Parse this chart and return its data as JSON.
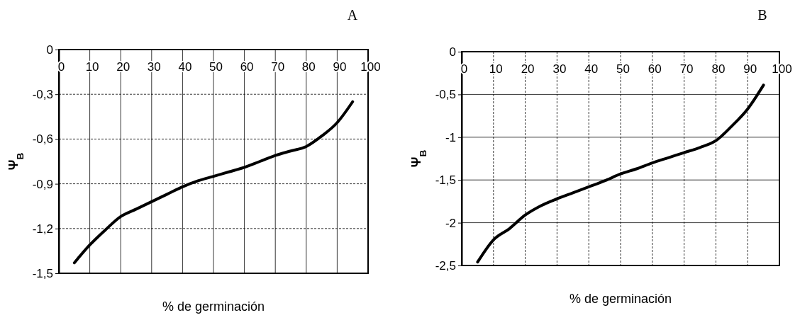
{
  "chart_data": [
    {
      "type": "line",
      "title": "A",
      "xlabel": "% de germinación",
      "ylabel": "Ψ$_{B}$",
      "xlim": [
        0,
        100
      ],
      "xticks": [
        0,
        10,
        20,
        30,
        40,
        50,
        60,
        70,
        80,
        90,
        100
      ],
      "ylim": [
        -1.5,
        0
      ],
      "yticks": [
        {
          "value": -1.5,
          "label": "-1,5"
        },
        {
          "value": -1.2,
          "label": "-1,2"
        },
        {
          "value": -0.9,
          "label": "-0,9"
        },
        {
          "value": -0.6,
          "label": "-0,6"
        },
        {
          "value": -0.3,
          "label": "-0,3"
        },
        0
      ],
      "grid": true,
      "marker": "none",
      "line_style": "solid",
      "series": [
        {
          "color": "#000000",
          "x": [
            5,
            10,
            15,
            20,
            25,
            30,
            35,
            40,
            45,
            50,
            55,
            60,
            65,
            70,
            75,
            80,
            85,
            90,
            95
          ],
          "values": [
            -1.43,
            -1.31,
            -1.21,
            -1.12,
            -1.07,
            -1.02,
            -0.97,
            -0.92,
            -0.88,
            -0.85,
            -0.82,
            -0.79,
            -0.75,
            -0.71,
            -0.68,
            -0.65,
            -0.58,
            -0.49,
            -0.35
          ]
        }
      ]
    },
    {
      "type": "line",
      "title": "B",
      "xlabel": "% de germinación",
      "ylabel": "Ψ$_{B}$",
      "xlim": [
        0,
        100
      ],
      "xticks": [
        0,
        10,
        20,
        30,
        40,
        50,
        60,
        70,
        80,
        90,
        100
      ],
      "ylim": [
        -2.5,
        0
      ],
      "yticks": [
        {
          "value": -2.5,
          "label": "-2,5"
        },
        -2,
        {
          "value": -1.5,
          "label": "-1,5"
        },
        -1,
        {
          "value": -0.5,
          "label": "-0,5"
        },
        0
      ],
      "grid": true,
      "marker": "none",
      "line_style": "solid",
      "series": [
        {
          "color": "#000000",
          "x": [
            5,
            10,
            15,
            20,
            25,
            30,
            35,
            40,
            45,
            50,
            55,
            60,
            65,
            70,
            75,
            80,
            85,
            90,
            95
          ],
          "values": [
            -2.46,
            -2.2,
            -2.07,
            -1.91,
            -1.8,
            -1.72,
            -1.65,
            -1.58,
            -1.51,
            -1.43,
            -1.37,
            -1.3,
            -1.24,
            -1.18,
            -1.12,
            -1.04,
            -0.87,
            -0.67,
            -0.39
          ]
        }
      ]
    }
  ]
}
